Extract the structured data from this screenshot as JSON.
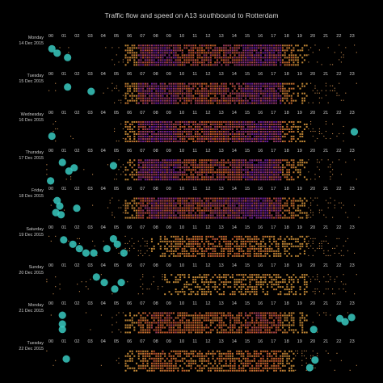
{
  "chart_data": {
    "type": "heatmap",
    "title": "Traffic flow and speed on A13 southbound to Rotterdam",
    "x_tick_labels": [
      "00",
      "01",
      "02",
      "03",
      "04",
      "05",
      "06",
      "07",
      "08",
      "09",
      "10",
      "11",
      "12",
      "13",
      "14",
      "15",
      "16",
      "17",
      "18",
      "19",
      "20",
      "21",
      "22",
      "23"
    ],
    "days": [
      {
        "weekday": "Monday",
        "date": "14 Dec 2015",
        "profile": [
          0.05,
          0.03,
          0.02,
          0.02,
          0.03,
          0.15,
          0.55,
          0.88,
          0.95,
          0.92,
          0.82,
          0.8,
          0.82,
          0.83,
          0.85,
          0.92,
          0.95,
          0.93,
          0.65,
          0.35,
          0.2,
          0.15,
          0.1,
          0.06
        ],
        "low_speed": [
          {
            "hour": 0.2,
            "value": 0.8
          },
          {
            "hour": 0.6,
            "value": 0.6
          },
          {
            "hour": 1.4,
            "value": 0.4
          }
        ]
      },
      {
        "weekday": "Tuesday",
        "date": "15 Dec 2015",
        "profile": [
          0.05,
          0.03,
          0.02,
          0.02,
          0.03,
          0.16,
          0.58,
          0.9,
          0.95,
          0.92,
          0.82,
          0.8,
          0.82,
          0.83,
          0.85,
          0.92,
          0.95,
          0.93,
          0.65,
          0.35,
          0.2,
          0.15,
          0.1,
          0.06
        ],
        "low_speed": [
          {
            "hour": 1.4,
            "value": 0.8
          },
          {
            "hour": 3.2,
            "value": 0.6
          }
        ]
      },
      {
        "weekday": "Wednesday",
        "date": "16 Dec 2015",
        "profile": [
          0.06,
          0.03,
          0.02,
          0.02,
          0.04,
          0.17,
          0.58,
          0.9,
          0.96,
          0.92,
          0.83,
          0.81,
          0.83,
          0.84,
          0.86,
          0.92,
          0.95,
          0.92,
          0.65,
          0.38,
          0.24,
          0.18,
          0.12,
          0.08
        ],
        "low_speed": [
          {
            "hour": 0.2,
            "value": 0.3
          },
          {
            "hour": 23.3,
            "value": 0.5
          }
        ]
      },
      {
        "weekday": "Thursday",
        "date": "17 Dec 2015",
        "profile": [
          0.06,
          0.03,
          0.02,
          0.02,
          0.04,
          0.17,
          0.58,
          0.9,
          0.95,
          0.92,
          0.83,
          0.81,
          0.83,
          0.84,
          0.86,
          0.92,
          0.95,
          0.92,
          0.66,
          0.4,
          0.25,
          0.18,
          0.12,
          0.08
        ],
        "low_speed": [
          {
            "hour": 1.0,
            "value": 0.85
          },
          {
            "hour": 1.5,
            "value": 0.45
          },
          {
            "hour": 0.1,
            "value": 0.0
          },
          {
            "hour": 4.9,
            "value": 0.7
          },
          {
            "hour": 1.9,
            "value": 0.6
          }
        ]
      },
      {
        "weekday": "Friday",
        "date": "18 Dec 2015",
        "profile": [
          0.08,
          0.05,
          0.03,
          0.03,
          0.05,
          0.17,
          0.55,
          0.85,
          0.9,
          0.88,
          0.85,
          0.85,
          0.87,
          0.88,
          0.9,
          0.94,
          0.95,
          0.88,
          0.65,
          0.42,
          0.28,
          0.22,
          0.15,
          0.1
        ],
        "low_speed": [
          {
            "hour": 0.6,
            "value": 0.85
          },
          {
            "hour": 0.8,
            "value": 0.6
          },
          {
            "hour": 0.5,
            "value": 0.3
          },
          {
            "hour": 0.9,
            "value": 0.2
          },
          {
            "hour": 2.1,
            "value": 0.5
          }
        ]
      },
      {
        "weekday": "Saturday",
        "date": "19 Dec 2015",
        "profile": [
          0.1,
          0.08,
          0.06,
          0.04,
          0.04,
          0.08,
          0.18,
          0.3,
          0.42,
          0.55,
          0.65,
          0.7,
          0.72,
          0.7,
          0.68,
          0.66,
          0.62,
          0.55,
          0.45,
          0.35,
          0.28,
          0.22,
          0.16,
          0.12
        ],
        "low_speed": [
          {
            "hour": 1.1,
            "value": 0.8
          },
          {
            "hour": 1.8,
            "value": 0.6
          },
          {
            "hour": 2.8,
            "value": 0.2
          },
          {
            "hour": 3.4,
            "value": 0.2
          },
          {
            "hour": 4.4,
            "value": 0.4
          },
          {
            "hour": 4.9,
            "value": 0.85
          },
          {
            "hour": 5.2,
            "value": 0.6
          },
          {
            "hour": 5.7,
            "value": 0.2
          },
          {
            "hour": 2.3,
            "value": 0.4
          }
        ]
      },
      {
        "weekday": "Sunday",
        "date": "20 Dec 2015",
        "profile": [
          0.1,
          0.08,
          0.06,
          0.04,
          0.03,
          0.04,
          0.08,
          0.14,
          0.22,
          0.32,
          0.42,
          0.5,
          0.55,
          0.56,
          0.57,
          0.58,
          0.57,
          0.52,
          0.45,
          0.38,
          0.3,
          0.24,
          0.17,
          0.1
        ],
        "low_speed": [
          {
            "hour": 3.6,
            "value": 0.85
          },
          {
            "hour": 4.2,
            "value": 0.6
          },
          {
            "hour": 5.0,
            "value": 0.3
          },
          {
            "hour": 5.5,
            "value": 0.6
          }
        ]
      },
      {
        "weekday": "Monday",
        "date": "21 Dec 2015",
        "profile": [
          0.05,
          0.03,
          0.02,
          0.02,
          0.03,
          0.15,
          0.45,
          0.72,
          0.8,
          0.78,
          0.72,
          0.7,
          0.72,
          0.73,
          0.75,
          0.8,
          0.82,
          0.78,
          0.55,
          0.32,
          0.2,
          0.14,
          0.1,
          0.06
        ],
        "low_speed": [
          {
            "hour": 1.0,
            "value": 0.85
          },
          {
            "hour": 1.0,
            "value": 0.45
          },
          {
            "hour": 1.0,
            "value": 0.2
          },
          {
            "hour": 20.2,
            "value": 0.2
          },
          {
            "hour": 22.2,
            "value": 0.7
          },
          {
            "hour": 22.6,
            "value": 0.55
          },
          {
            "hour": 23.1,
            "value": 0.75
          }
        ]
      },
      {
        "weekday": "Tuesday",
        "date": "22 Dec 2015",
        "profile": [
          0.05,
          0.03,
          0.02,
          0.02,
          0.03,
          0.14,
          0.42,
          0.65,
          0.72,
          0.7,
          0.65,
          0.63,
          0.65,
          0.66,
          0.68,
          0.72,
          0.74,
          0.7,
          0.5,
          0.3,
          0.18,
          0.12,
          0.08,
          0.05
        ],
        "low_speed": [
          {
            "hour": 1.3,
            "value": 0.6
          },
          {
            "hour": 19.9,
            "value": 0.2
          },
          {
            "hour": 20.3,
            "value": 0.55
          }
        ]
      }
    ],
    "color_scale": {
      "low": "#ffb347",
      "mid": "#e3632d",
      "high": "#6a1f9c",
      "marker": "#38c9c0",
      "background": "#000000"
    },
    "grid": false,
    "legend": "none"
  }
}
